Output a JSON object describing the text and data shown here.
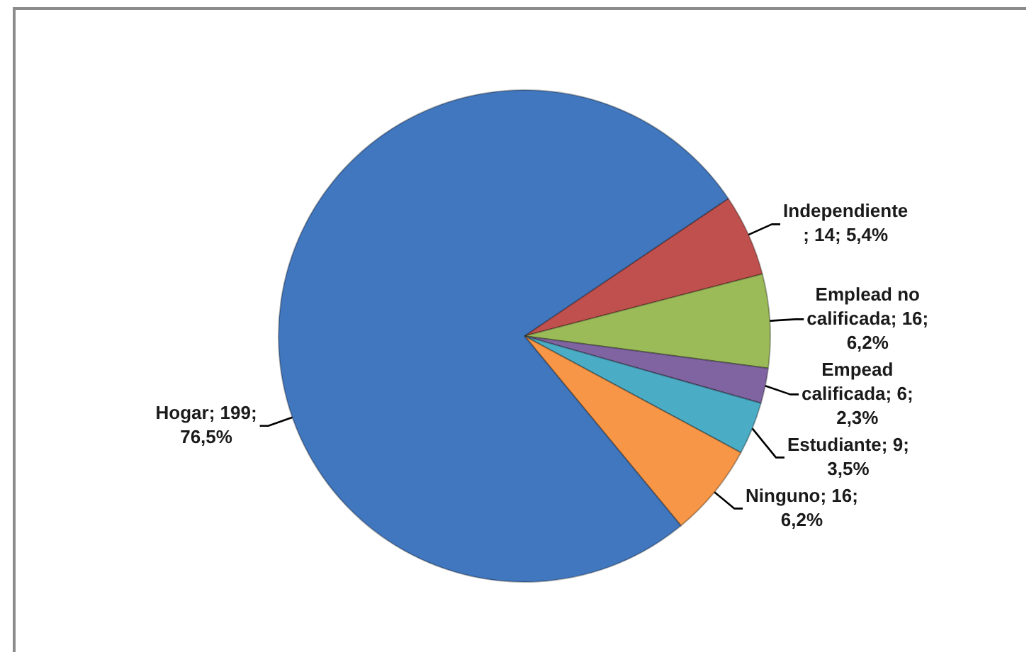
{
  "chart_data": {
    "type": "pie",
    "categories": [
      "Independiente",
      "Emplead no calificada",
      "Empead calificada",
      "Estudiante",
      "Ninguno",
      "Hogar"
    ],
    "values": [
      14,
      16,
      6,
      9,
      16,
      199
    ],
    "value_labels": [
      "; 14; 5,4%",
      "; 16; 6,2%",
      "; 6; 2,3%",
      "; 9; 3,5%",
      "; 16; 6,2%",
      "; 199; 76,5%"
    ],
    "colors": [
      "#c0504d",
      "#9bbb59",
      "#8064a2",
      "#4bacc6",
      "#f79646",
      "#4177bf"
    ]
  }
}
